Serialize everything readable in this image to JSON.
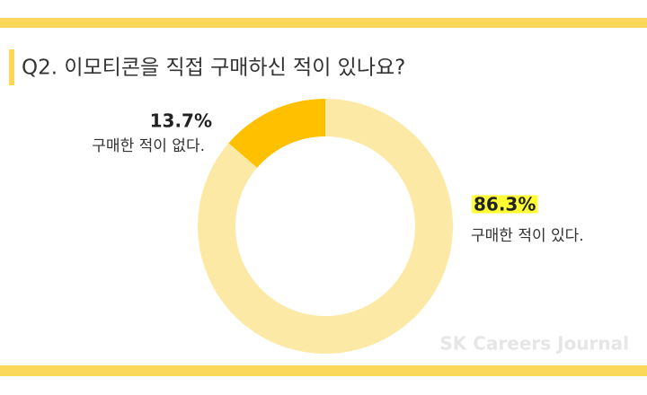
{
  "chart_data": {
    "type": "donut",
    "title": "Q2. 이모티콘을 직접 구매하신 적이 있나요?",
    "categories": [
      "구매한 적이 없다.",
      "구매한 적이 있다."
    ],
    "values": [
      13.7,
      86.3
    ],
    "value_labels": [
      "13.7%",
      "86.3%"
    ],
    "colors": [
      "#ffc000",
      "#fde9a6"
    ],
    "watermark": "SK Careers Journal"
  }
}
